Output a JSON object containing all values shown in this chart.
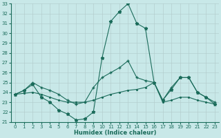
{
  "xlabel": "Humidex (Indice chaleur)",
  "background_color": "#c8e8e8",
  "grid_color": "#b0c8c8",
  "line_color": "#1a6b5a",
  "xlim": [
    -0.5,
    23.5
  ],
  "ylim": [
    21,
    33
  ],
  "xticks": [
    0,
    1,
    2,
    3,
    4,
    5,
    6,
    7,
    8,
    9,
    10,
    11,
    12,
    13,
    14,
    15,
    16,
    17,
    18,
    19,
    20,
    21,
    22,
    23
  ],
  "yticks": [
    21,
    22,
    23,
    24,
    25,
    26,
    27,
    28,
    29,
    30,
    31,
    32,
    33
  ],
  "line_peak_x": [
    0,
    1,
    2,
    3,
    4,
    5,
    6,
    7,
    8,
    9,
    10,
    11,
    12,
    13,
    14,
    15,
    16,
    17,
    18,
    19,
    20,
    21,
    22,
    23
  ],
  "line_peak_y": [
    23.8,
    24.2,
    24.8,
    23.5,
    23.0,
    22.2,
    21.8,
    21.2,
    21.3,
    22.0,
    27.5,
    31.2,
    32.2,
    33.0,
    31.0,
    30.5,
    25.0,
    23.2,
    24.3,
    25.5,
    25.5,
    24.0,
    23.5,
    22.8
  ],
  "line_mid_x": [
    0,
    1,
    2,
    3,
    4,
    5,
    6,
    7,
    8,
    9,
    10,
    11,
    12,
    13,
    14,
    15,
    16,
    17,
    18,
    19,
    20,
    21,
    22,
    23
  ],
  "line_mid_y": [
    23.8,
    24.2,
    25.0,
    24.5,
    24.2,
    23.8,
    23.2,
    22.8,
    23.0,
    24.5,
    25.5,
    26.0,
    26.5,
    27.2,
    25.5,
    25.2,
    25.0,
    23.2,
    24.5,
    25.5,
    25.5,
    24.0,
    23.5,
    23.0
  ],
  "line_flat_x": [
    0,
    1,
    2,
    3,
    4,
    5,
    6,
    7,
    8,
    9,
    10,
    11,
    12,
    13,
    14,
    15,
    16,
    17,
    18,
    19,
    20,
    21,
    22,
    23
  ],
  "line_flat_y": [
    23.8,
    23.9,
    24.0,
    23.8,
    23.5,
    23.2,
    23.0,
    23.0,
    23.0,
    23.2,
    23.5,
    23.8,
    24.0,
    24.2,
    24.3,
    24.5,
    25.0,
    23.0,
    23.2,
    23.5,
    23.5,
    23.2,
    23.0,
    22.8
  ]
}
